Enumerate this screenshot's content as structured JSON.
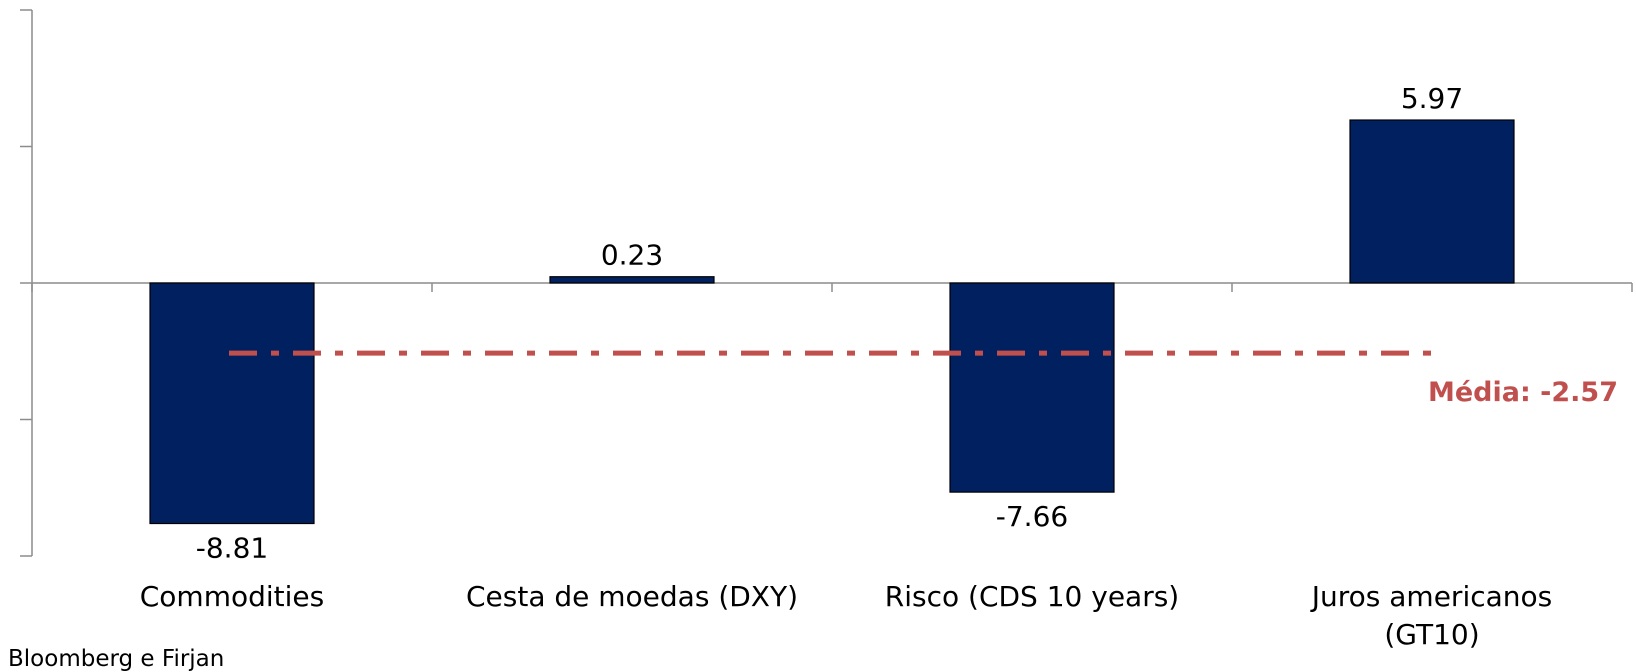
{
  "chart_data": {
    "type": "bar",
    "categories": [
      "Commodities",
      "Cesta de moedas (DXY)",
      "Risco (CDS 10 years)",
      "Juros americanos (GT10)"
    ],
    "category_lines": [
      [
        "Commodities"
      ],
      [
        "Cesta de moedas (DXY)"
      ],
      [
        "Risco (CDS 10 years)"
      ],
      [
        "Juros americanos",
        "(GT10)"
      ]
    ],
    "values": [
      -8.81,
      0.23,
      -7.66,
      5.97
    ],
    "data_labels": [
      "-8.81",
      "0.23",
      "-7.66",
      "5.97"
    ],
    "ylim": [
      -10,
      10
    ],
    "grid": false,
    "bar_color": "#002060",
    "average": {
      "label": "Média: -2.57",
      "value": -2.57,
      "color": "#c0504d"
    },
    "title": "",
    "xlabel": "",
    "ylabel": ""
  },
  "source": "Bloomberg e Firjan"
}
